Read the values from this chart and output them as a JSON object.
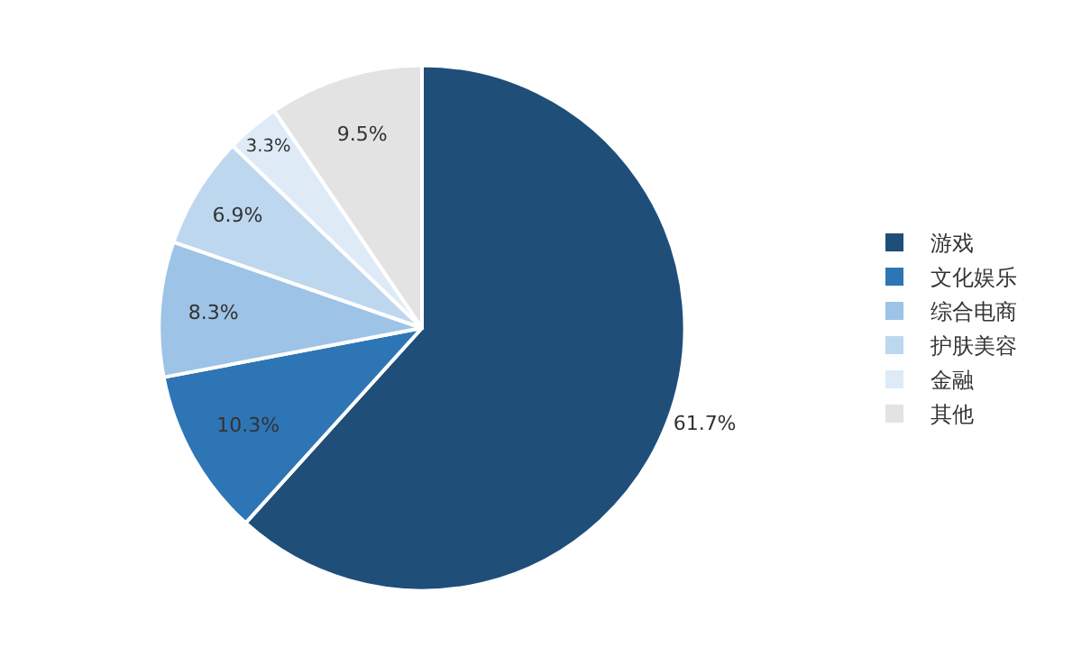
{
  "chart_data": {
    "type": "pie",
    "categories": [
      "游戏",
      "文化娱乐",
      "综合电商",
      "护肤美容",
      "金融",
      "其他"
    ],
    "values": [
      61.7,
      10.3,
      8.3,
      6.9,
      3.3,
      9.5
    ],
    "value_labels": [
      "61.7%",
      "10.3%",
      "8.3%",
      "6.9%",
      "3.3%",
      "9.5%"
    ],
    "colors": [
      "#1f4e79",
      "#2e75b6",
      "#9dc3e6",
      "#bdd7ee",
      "#deebf7",
      "#e3e3e3"
    ],
    "legend": "right"
  }
}
